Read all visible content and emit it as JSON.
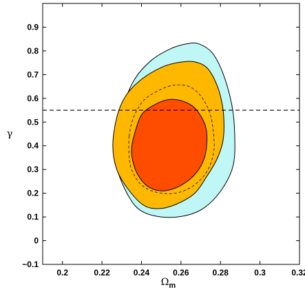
{
  "chart_data": {
    "type": "contour",
    "xlabel": "Ω",
    "xlabel_subscript": "m",
    "ylabel": "γ",
    "xlim": [
      0.19,
      0.32
    ],
    "ylim": [
      -0.1,
      1.0
    ],
    "xticks": [
      "0.2",
      "0.22",
      "0.24",
      "0.26",
      "0.28",
      "0.3",
      "0.32"
    ],
    "yticks": [
      "−0.1",
      "0",
      "0.1",
      "0.2",
      "0.3",
      "0.4",
      "0.5",
      "0.6",
      "0.7",
      "0.8",
      "0.9"
    ],
    "reference_line": {
      "y": 0.55,
      "style": "dashed",
      "color": "#000000"
    },
    "contours": [
      {
        "name": "outer-cyan",
        "fill": "#bff6f6",
        "points": [
          [
            0.2365,
            0.68
          ],
          [
            0.245,
            0.76
          ],
          [
            0.255,
            0.81
          ],
          [
            0.263,
            0.83
          ],
          [
            0.269,
            0.83
          ],
          [
            0.276,
            0.79
          ],
          [
            0.2815,
            0.7
          ],
          [
            0.2858,
            0.57
          ],
          [
            0.2872,
            0.45
          ],
          [
            0.2865,
            0.32
          ],
          [
            0.281,
            0.22
          ],
          [
            0.272,
            0.14
          ],
          [
            0.262,
            0.105
          ],
          [
            0.25,
            0.1
          ],
          [
            0.24,
            0.125
          ],
          [
            0.234,
            0.18
          ],
          [
            0.2285,
            0.28
          ],
          [
            0.2275,
            0.35
          ],
          [
            0.2285,
            0.45
          ],
          [
            0.231,
            0.57
          ]
        ]
      },
      {
        "name": "orange-68",
        "fill": "#ffb800",
        "points": [
          [
            0.2275,
            0.52
          ],
          [
            0.232,
            0.61
          ],
          [
            0.24,
            0.68
          ],
          [
            0.25,
            0.73
          ],
          [
            0.258,
            0.75
          ],
          [
            0.266,
            0.755
          ],
          [
            0.273,
            0.73
          ],
          [
            0.278,
            0.66
          ],
          [
            0.281,
            0.57
          ],
          [
            0.2818,
            0.48
          ],
          [
            0.281,
            0.41
          ],
          [
            0.278,
            0.34
          ],
          [
            0.273,
            0.27
          ],
          [
            0.267,
            0.2
          ],
          [
            0.258,
            0.155
          ],
          [
            0.249,
            0.135
          ],
          [
            0.241,
            0.15
          ],
          [
            0.233,
            0.22
          ],
          [
            0.2275,
            0.3
          ],
          [
            0.2255,
            0.4
          ]
        ]
      },
      {
        "name": "red-core",
        "fill": "#ff4d00",
        "points": [
          [
            0.2365,
            0.45
          ],
          [
            0.24,
            0.53
          ],
          [
            0.246,
            0.57
          ],
          [
            0.254,
            0.595
          ],
          [
            0.262,
            0.585
          ],
          [
            0.268,
            0.55
          ],
          [
            0.2725,
            0.48
          ],
          [
            0.273,
            0.4
          ],
          [
            0.271,
            0.33
          ],
          [
            0.266,
            0.27
          ],
          [
            0.258,
            0.225
          ],
          [
            0.25,
            0.21
          ],
          [
            0.243,
            0.23
          ],
          [
            0.238,
            0.28
          ],
          [
            0.2355,
            0.34
          ],
          [
            0.235,
            0.39
          ]
        ]
      },
      {
        "name": "dashed-contour",
        "fill": "none",
        "dashed": true,
        "points": [
          [
            0.2338,
            0.44
          ],
          [
            0.236,
            0.52
          ],
          [
            0.241,
            0.59
          ],
          [
            0.248,
            0.63
          ],
          [
            0.256,
            0.655
          ],
          [
            0.264,
            0.65
          ],
          [
            0.27,
            0.61
          ],
          [
            0.2745,
            0.54
          ],
          [
            0.2765,
            0.45
          ],
          [
            0.2765,
            0.37
          ],
          [
            0.273,
            0.29
          ],
          [
            0.266,
            0.23
          ],
          [
            0.257,
            0.2
          ],
          [
            0.247,
            0.205
          ],
          [
            0.24,
            0.235
          ],
          [
            0.2355,
            0.29
          ],
          [
            0.2338,
            0.35
          ]
        ]
      }
    ]
  },
  "colors": {
    "cyan": "#bff6f6",
    "orange": "#ffb800",
    "red": "#ff4d00",
    "line": "#000000"
  }
}
